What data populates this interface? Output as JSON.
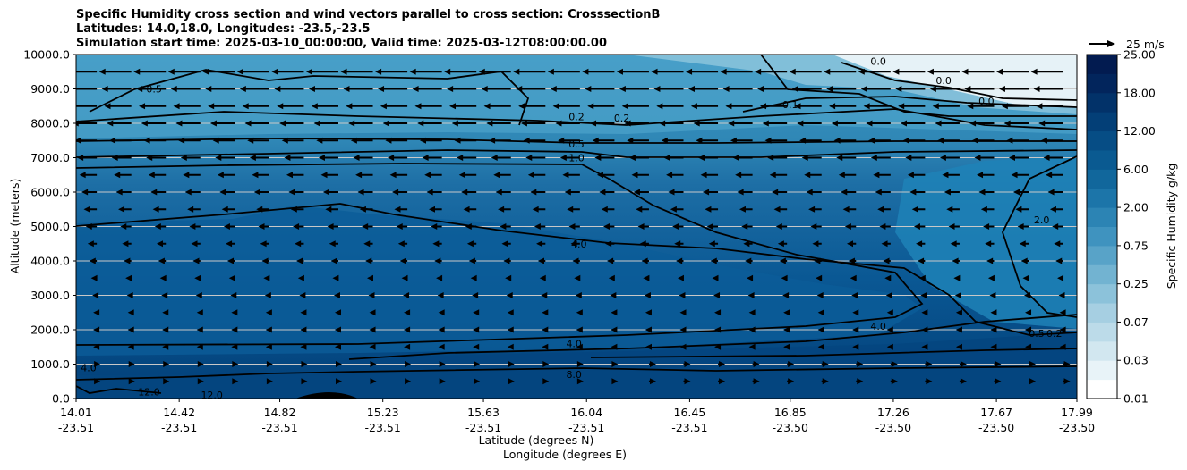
{
  "chart_data": {
    "type": "contour",
    "title_lines": [
      "Specific Humidity cross section and wind vectors parallel to cross section: CrosssectionB",
      "Latitudes: 14.0,18.0, Longitudes: -23.5,-23.5",
      "Simulation start time: 2025-03-10_00:00:00, Valid time: 2025-03-12T08:00:00.00"
    ],
    "ylabel": "Altitude (meters)",
    "xlabel_line1": "Latitude (degrees N)",
    "xlabel_line2": "Longitude (degrees E)",
    "ylim": [
      0,
      10000
    ],
    "y_ticks": [
      "0.0",
      "1000.0",
      "2000.0",
      "3000.0",
      "4000.0",
      "5000.0",
      "6000.0",
      "7000.0",
      "8000.0",
      "9000.0",
      "10000.0"
    ],
    "x_ticks": [
      {
        "lat": "14.01",
        "lon": "-23.51"
      },
      {
        "lat": "14.42",
        "lon": "-23.51"
      },
      {
        "lat": "14.82",
        "lon": "-23.51"
      },
      {
        "lat": "15.23",
        "lon": "-23.51"
      },
      {
        "lat": "15.63",
        "lon": "-23.51"
      },
      {
        "lat": "16.04",
        "lon": "-23.51"
      },
      {
        "lat": "16.45",
        "lon": "-23.51"
      },
      {
        "lat": "16.85",
        "lon": "-23.50"
      },
      {
        "lat": "17.26",
        "lon": "-23.50"
      },
      {
        "lat": "17.67",
        "lon": "-23.50"
      },
      {
        "lat": "17.99",
        "lon": "-23.50"
      }
    ],
    "colorbar": {
      "label": "Specific Humidity g/kg",
      "levels": [
        "0.01",
        "0.03",
        "0.07",
        "0.25",
        "0.75",
        "2.00",
        "6.00",
        "12.00",
        "18.00",
        "25.00"
      ]
    },
    "quiver_key": "25 m/s",
    "contour_labels": [
      {
        "text": "0.5",
        "lat": 14.32,
        "alt": 9000
      },
      {
        "text": "0.2",
        "lat": 16.0,
        "alt": 8200
      },
      {
        "text": "0.2",
        "lat": 16.18,
        "alt": 8150
      },
      {
        "text": "0.1",
        "lat": 16.85,
        "alt": 8550
      },
      {
        "text": "0.5",
        "lat": 16.0,
        "alt": 7400
      },
      {
        "text": "1.0",
        "lat": 16.0,
        "alt": 7000
      },
      {
        "text": "0.0",
        "lat": 17.46,
        "alt": 9250
      },
      {
        "text": "0.0",
        "lat": 17.2,
        "alt": 9800
      },
      {
        "text": "0.0",
        "lat": 17.63,
        "alt": 8650
      },
      {
        "text": "4.0",
        "lat": 16.01,
        "alt": 4500
      },
      {
        "text": "2.0",
        "lat": 17.85,
        "alt": 5200
      },
      {
        "text": "4.0",
        "lat": 17.2,
        "alt": 2100
      },
      {
        "text": "0.5",
        "lat": 17.83,
        "alt": 1900
      },
      {
        "text": "0.2",
        "lat": 17.9,
        "alt": 1900
      },
      {
        "text": "4.0",
        "lat": 15.99,
        "alt": 1600
      },
      {
        "text": "8.0",
        "lat": 15.99,
        "alt": 700
      },
      {
        "text": "4.0",
        "lat": 14.06,
        "alt": 900
      },
      {
        "text": "12.0",
        "lat": 14.3,
        "alt": 200
      },
      {
        "text": "12.0",
        "lat": 14.55,
        "alt": 100
      }
    ]
  }
}
